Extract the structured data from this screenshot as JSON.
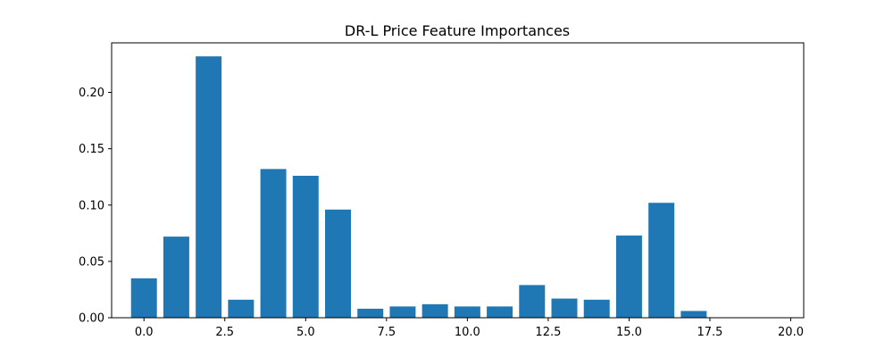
{
  "chart_data": {
    "type": "bar",
    "title": "DR-L Price Feature Importances",
    "xlabel": "",
    "ylabel": "",
    "x": [
      0,
      1,
      2,
      3,
      4,
      5,
      6,
      7,
      8,
      9,
      10,
      11,
      12,
      13,
      14,
      15,
      16,
      17,
      18,
      19
    ],
    "values": [
      0.035,
      0.072,
      0.232,
      0.016,
      0.132,
      0.126,
      0.096,
      0.008,
      0.01,
      0.012,
      0.01,
      0.01,
      0.029,
      0.017,
      0.016,
      0.073,
      0.102,
      0.006,
      0.0,
      0.0
    ],
    "xlim": [
      -1.0,
      20.4
    ],
    "ylim": [
      0,
      0.244
    ],
    "xticks": [
      0.0,
      2.5,
      5.0,
      7.5,
      10.0,
      12.5,
      15.0,
      17.5,
      20.0
    ],
    "xtick_labels": [
      "0.0",
      "2.5",
      "5.0",
      "7.5",
      "10.0",
      "12.5",
      "15.0",
      "17.5",
      "20.0"
    ],
    "yticks": [
      0.0,
      0.05,
      0.1,
      0.15,
      0.2
    ],
    "ytick_labels": [
      "0.00",
      "0.05",
      "0.10",
      "0.15",
      "0.20"
    ],
    "bar_width": 0.8,
    "bar_color": "#1f77b4",
    "grid": false,
    "legend": "none"
  }
}
